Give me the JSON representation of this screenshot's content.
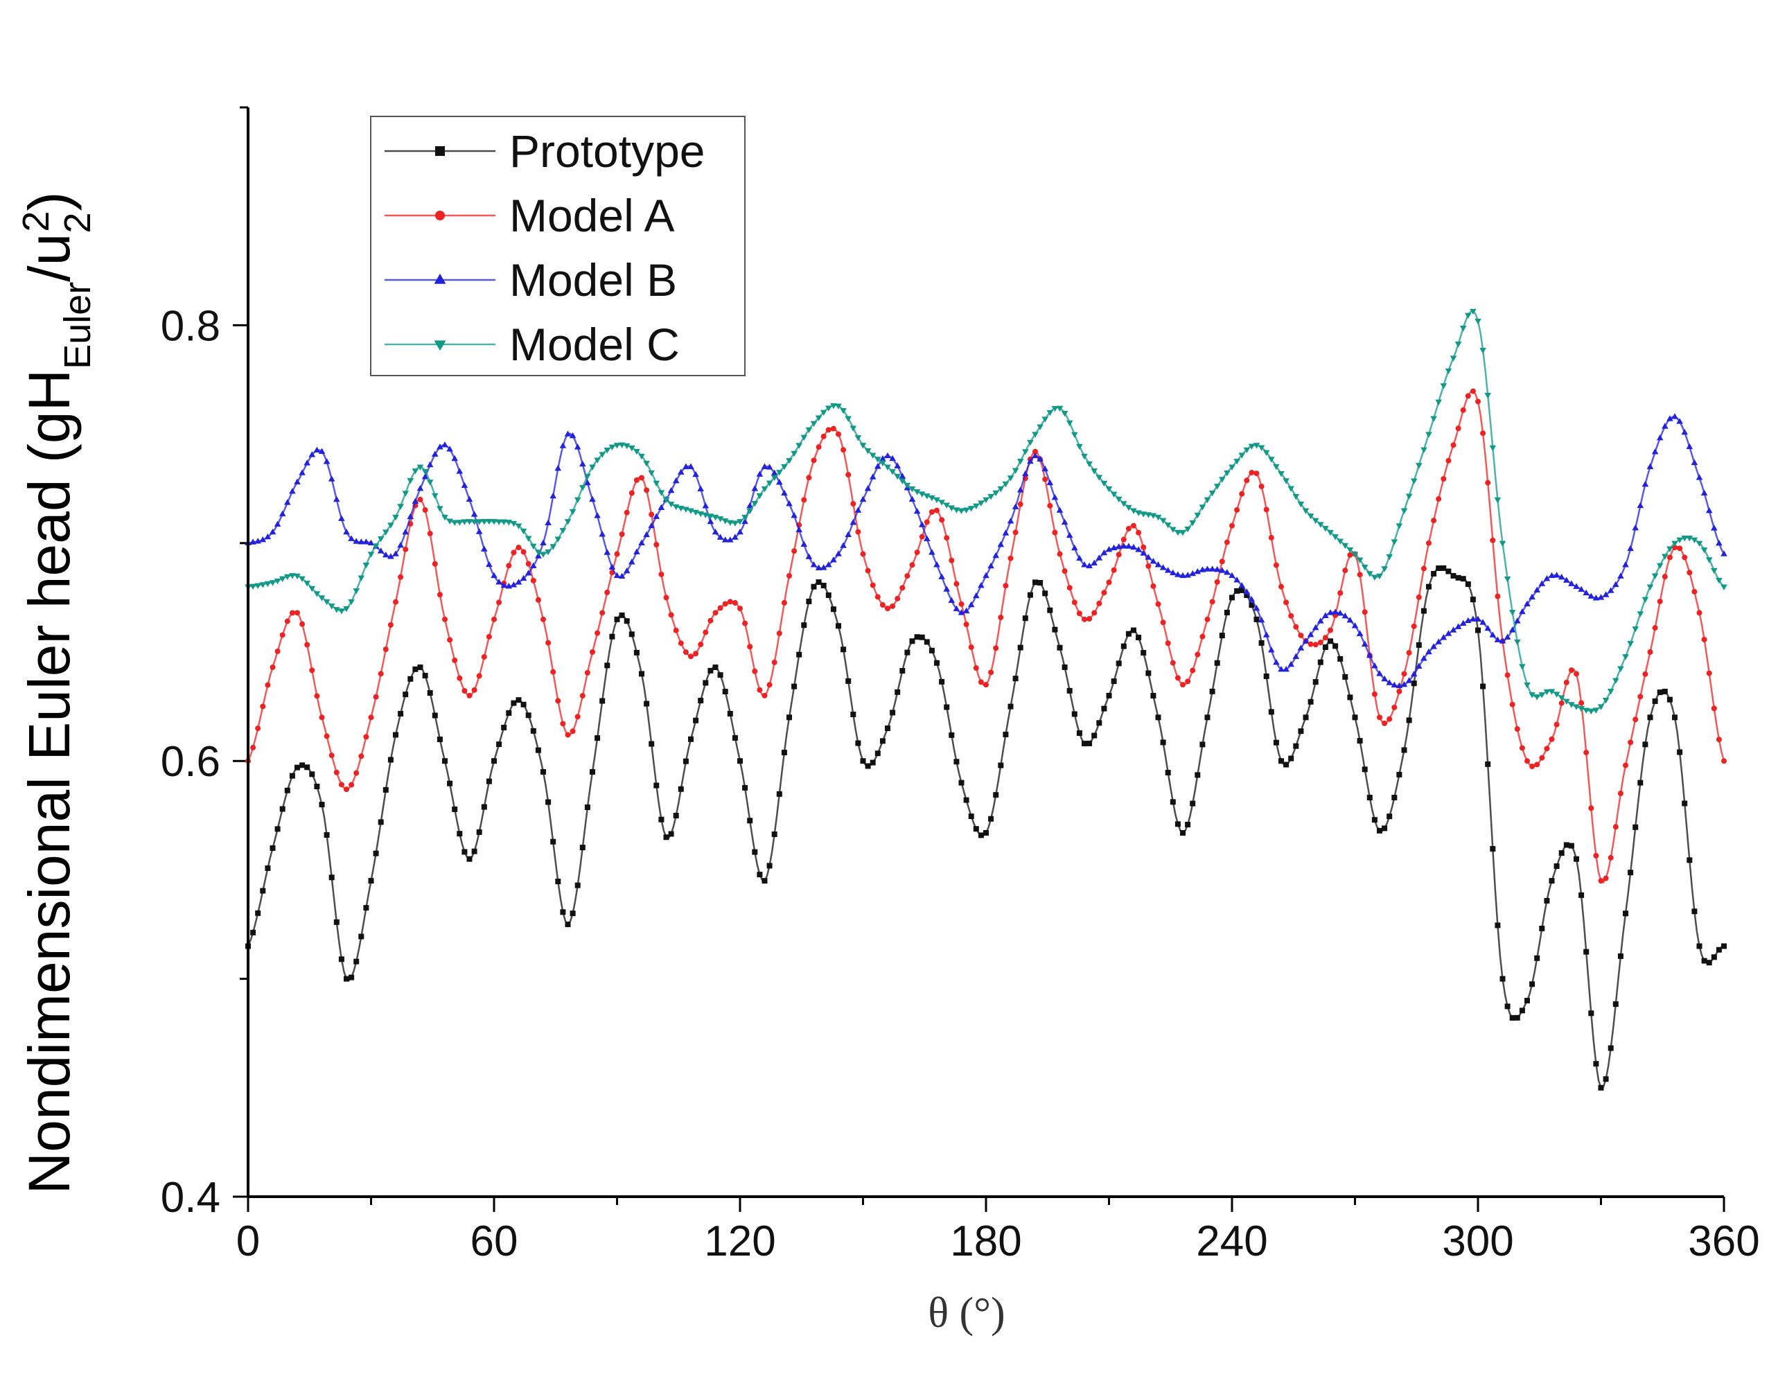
{
  "chart_data": {
    "type": "line",
    "title": "",
    "xlabel": "θ (°)",
    "ylabel": {
      "main": "Nondimensional Euler head (gH",
      "sub1": "Euler",
      "mid": "/u",
      "sub2": "2",
      "sup": "2",
      "end": ")"
    },
    "xlim": [
      0,
      360
    ],
    "ylim": [
      0.4,
      0.9
    ],
    "xticks": [
      0,
      60,
      120,
      180,
      240,
      300,
      360
    ],
    "xtick_labels": [
      "0",
      "60",
      "120",
      "180",
      "240",
      "300",
      "360"
    ],
    "yticks": [
      0.4,
      0.6,
      0.8
    ],
    "ytick_labels": [
      "0.4",
      "0.6",
      "0.8"
    ],
    "legend_position": "top-left",
    "series": [
      {
        "name": "Prototype",
        "color": "#111111",
        "marker": "square",
        "x": [
          0,
          6,
          12,
          18,
          24,
          30,
          36,
          42,
          48,
          54,
          60,
          66,
          72,
          78,
          84,
          90,
          96,
          102,
          108,
          114,
          120,
          126,
          132,
          138,
          144,
          150,
          156,
          162,
          168,
          174,
          180,
          186,
          192,
          198,
          204,
          210,
          216,
          222,
          228,
          234,
          240,
          246,
          252,
          258,
          264,
          270,
          276,
          282,
          288,
          294,
          300,
          306,
          312,
          318,
          324,
          330,
          336,
          342,
          348,
          354,
          360
        ],
        "values": [
          0.515,
          0.56,
          0.597,
          0.58,
          0.5,
          0.545,
          0.612,
          0.643,
          0.6,
          0.555,
          0.6,
          0.628,
          0.595,
          0.525,
          0.595,
          0.665,
          0.64,
          0.565,
          0.61,
          0.643,
          0.6,
          0.545,
          0.62,
          0.68,
          0.662,
          0.6,
          0.615,
          0.655,
          0.645,
          0.59,
          0.567,
          0.625,
          0.682,
          0.652,
          0.608,
          0.63,
          0.66,
          0.62,
          0.567,
          0.62,
          0.675,
          0.665,
          0.6,
          0.62,
          0.655,
          0.62,
          0.568,
          0.605,
          0.68,
          0.685,
          0.66,
          0.5,
          0.49,
          0.545,
          0.555,
          0.45,
          0.53,
          0.62,
          0.62,
          0.515,
          0.515
        ]
      },
      {
        "name": "Model A",
        "color": "#ee2222",
        "marker": "circle",
        "x": [
          0,
          6,
          12,
          18,
          24,
          30,
          36,
          42,
          48,
          54,
          60,
          66,
          72,
          78,
          84,
          90,
          96,
          102,
          108,
          114,
          120,
          126,
          132,
          138,
          144,
          150,
          156,
          162,
          168,
          174,
          180,
          186,
          192,
          198,
          204,
          210,
          216,
          222,
          228,
          234,
          240,
          246,
          252,
          258,
          264,
          270,
          276,
          282,
          288,
          294,
          300,
          306,
          312,
          318,
          324,
          330,
          336,
          342,
          348,
          354,
          360
        ],
        "values": [
          0.6,
          0.643,
          0.668,
          0.62,
          0.587,
          0.62,
          0.673,
          0.72,
          0.665,
          0.63,
          0.665,
          0.698,
          0.665,
          0.612,
          0.65,
          0.695,
          0.73,
          0.675,
          0.648,
          0.668,
          0.67,
          0.63,
          0.685,
          0.738,
          0.75,
          0.695,
          0.67,
          0.69,
          0.715,
          0.672,
          0.635,
          0.693,
          0.742,
          0.695,
          0.665,
          0.682,
          0.708,
          0.672,
          0.635,
          0.665,
          0.708,
          0.732,
          0.68,
          0.655,
          0.66,
          0.695,
          0.62,
          0.64,
          0.7,
          0.745,
          0.765,
          0.655,
          0.6,
          0.61,
          0.64,
          0.545,
          0.598,
          0.65,
          0.698,
          0.668,
          0.6
        ]
      },
      {
        "name": "Model B",
        "color": "#2222dd",
        "marker": "triangle-up",
        "x": [
          0,
          6,
          12,
          18,
          24,
          30,
          36,
          42,
          48,
          54,
          60,
          66,
          72,
          78,
          84,
          90,
          96,
          102,
          108,
          114,
          120,
          126,
          132,
          138,
          144,
          150,
          156,
          162,
          168,
          174,
          180,
          186,
          192,
          198,
          204,
          210,
          216,
          222,
          228,
          234,
          240,
          246,
          252,
          258,
          264,
          270,
          276,
          282,
          288,
          294,
          300,
          306,
          312,
          318,
          324,
          330,
          336,
          342,
          348,
          354,
          360
        ],
        "values": [
          0.7,
          0.705,
          0.728,
          0.742,
          0.705,
          0.7,
          0.695,
          0.725,
          0.745,
          0.72,
          0.685,
          0.682,
          0.7,
          0.75,
          0.72,
          0.685,
          0.7,
          0.72,
          0.735,
          0.705,
          0.705,
          0.735,
          0.718,
          0.69,
          0.695,
          0.72,
          0.74,
          0.72,
          0.69,
          0.668,
          0.685,
          0.71,
          0.74,
          0.715,
          0.69,
          0.697,
          0.698,
          0.69,
          0.685,
          0.688,
          0.685,
          0.67,
          0.642,
          0.655,
          0.668,
          0.662,
          0.64,
          0.635,
          0.65,
          0.66,
          0.665,
          0.655,
          0.672,
          0.685,
          0.68,
          0.675,
          0.69,
          0.735,
          0.758,
          0.73,
          0.695
        ]
      },
      {
        "name": "Model C",
        "color": "#119988",
        "marker": "triangle-down",
        "x": [
          0,
          6,
          12,
          18,
          24,
          30,
          36,
          42,
          48,
          54,
          60,
          66,
          72,
          78,
          84,
          90,
          96,
          102,
          108,
          114,
          120,
          126,
          132,
          138,
          144,
          150,
          156,
          162,
          168,
          174,
          180,
          186,
          192,
          198,
          204,
          210,
          216,
          222,
          228,
          234,
          240,
          246,
          252,
          258,
          264,
          270,
          276,
          282,
          288,
          294,
          300,
          306,
          312,
          318,
          324,
          330,
          336,
          342,
          348,
          354,
          360
        ],
        "values": [
          0.68,
          0.682,
          0.685,
          0.675,
          0.67,
          0.695,
          0.712,
          0.735,
          0.712,
          0.71,
          0.71,
          0.708,
          0.695,
          0.71,
          0.735,
          0.745,
          0.74,
          0.72,
          0.715,
          0.712,
          0.71,
          0.725,
          0.738,
          0.755,
          0.763,
          0.745,
          0.735,
          0.725,
          0.72,
          0.715,
          0.72,
          0.73,
          0.75,
          0.762,
          0.74,
          0.725,
          0.715,
          0.712,
          0.705,
          0.72,
          0.735,
          0.745,
          0.732,
          0.715,
          0.705,
          0.695,
          0.685,
          0.715,
          0.75,
          0.785,
          0.802,
          0.7,
          0.635,
          0.632,
          0.625,
          0.625,
          0.648,
          0.68,
          0.7,
          0.7,
          0.68
        ]
      }
    ]
  }
}
